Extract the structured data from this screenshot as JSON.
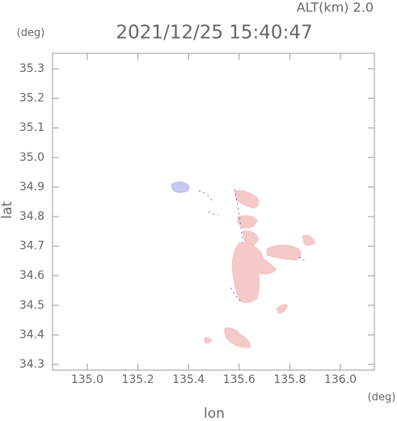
{
  "chart_data": {
    "type": "map",
    "altitude_label": "ALT(km) 2.0",
    "title": "2021/12/25 15:40:47",
    "y_unit": "(deg)",
    "x_unit": "(deg)",
    "x_label": "lon",
    "y_label": "lat",
    "xlim": [
      134.863,
      136.134
    ],
    "ylim": [
      34.281,
      35.352
    ],
    "xticks": [
      {
        "value": 135,
        "label": "135.0"
      },
      135.2,
      135.4,
      135.6,
      135.8,
      {
        "value": 136,
        "label": "136.0"
      }
    ],
    "yticks": [
      34.3,
      34.4,
      34.5,
      34.6,
      34.7,
      34.8,
      34.9,
      {
        "value": 35,
        "label": "35.0"
      },
      35.1,
      35.2,
      35.3
    ]
  }
}
